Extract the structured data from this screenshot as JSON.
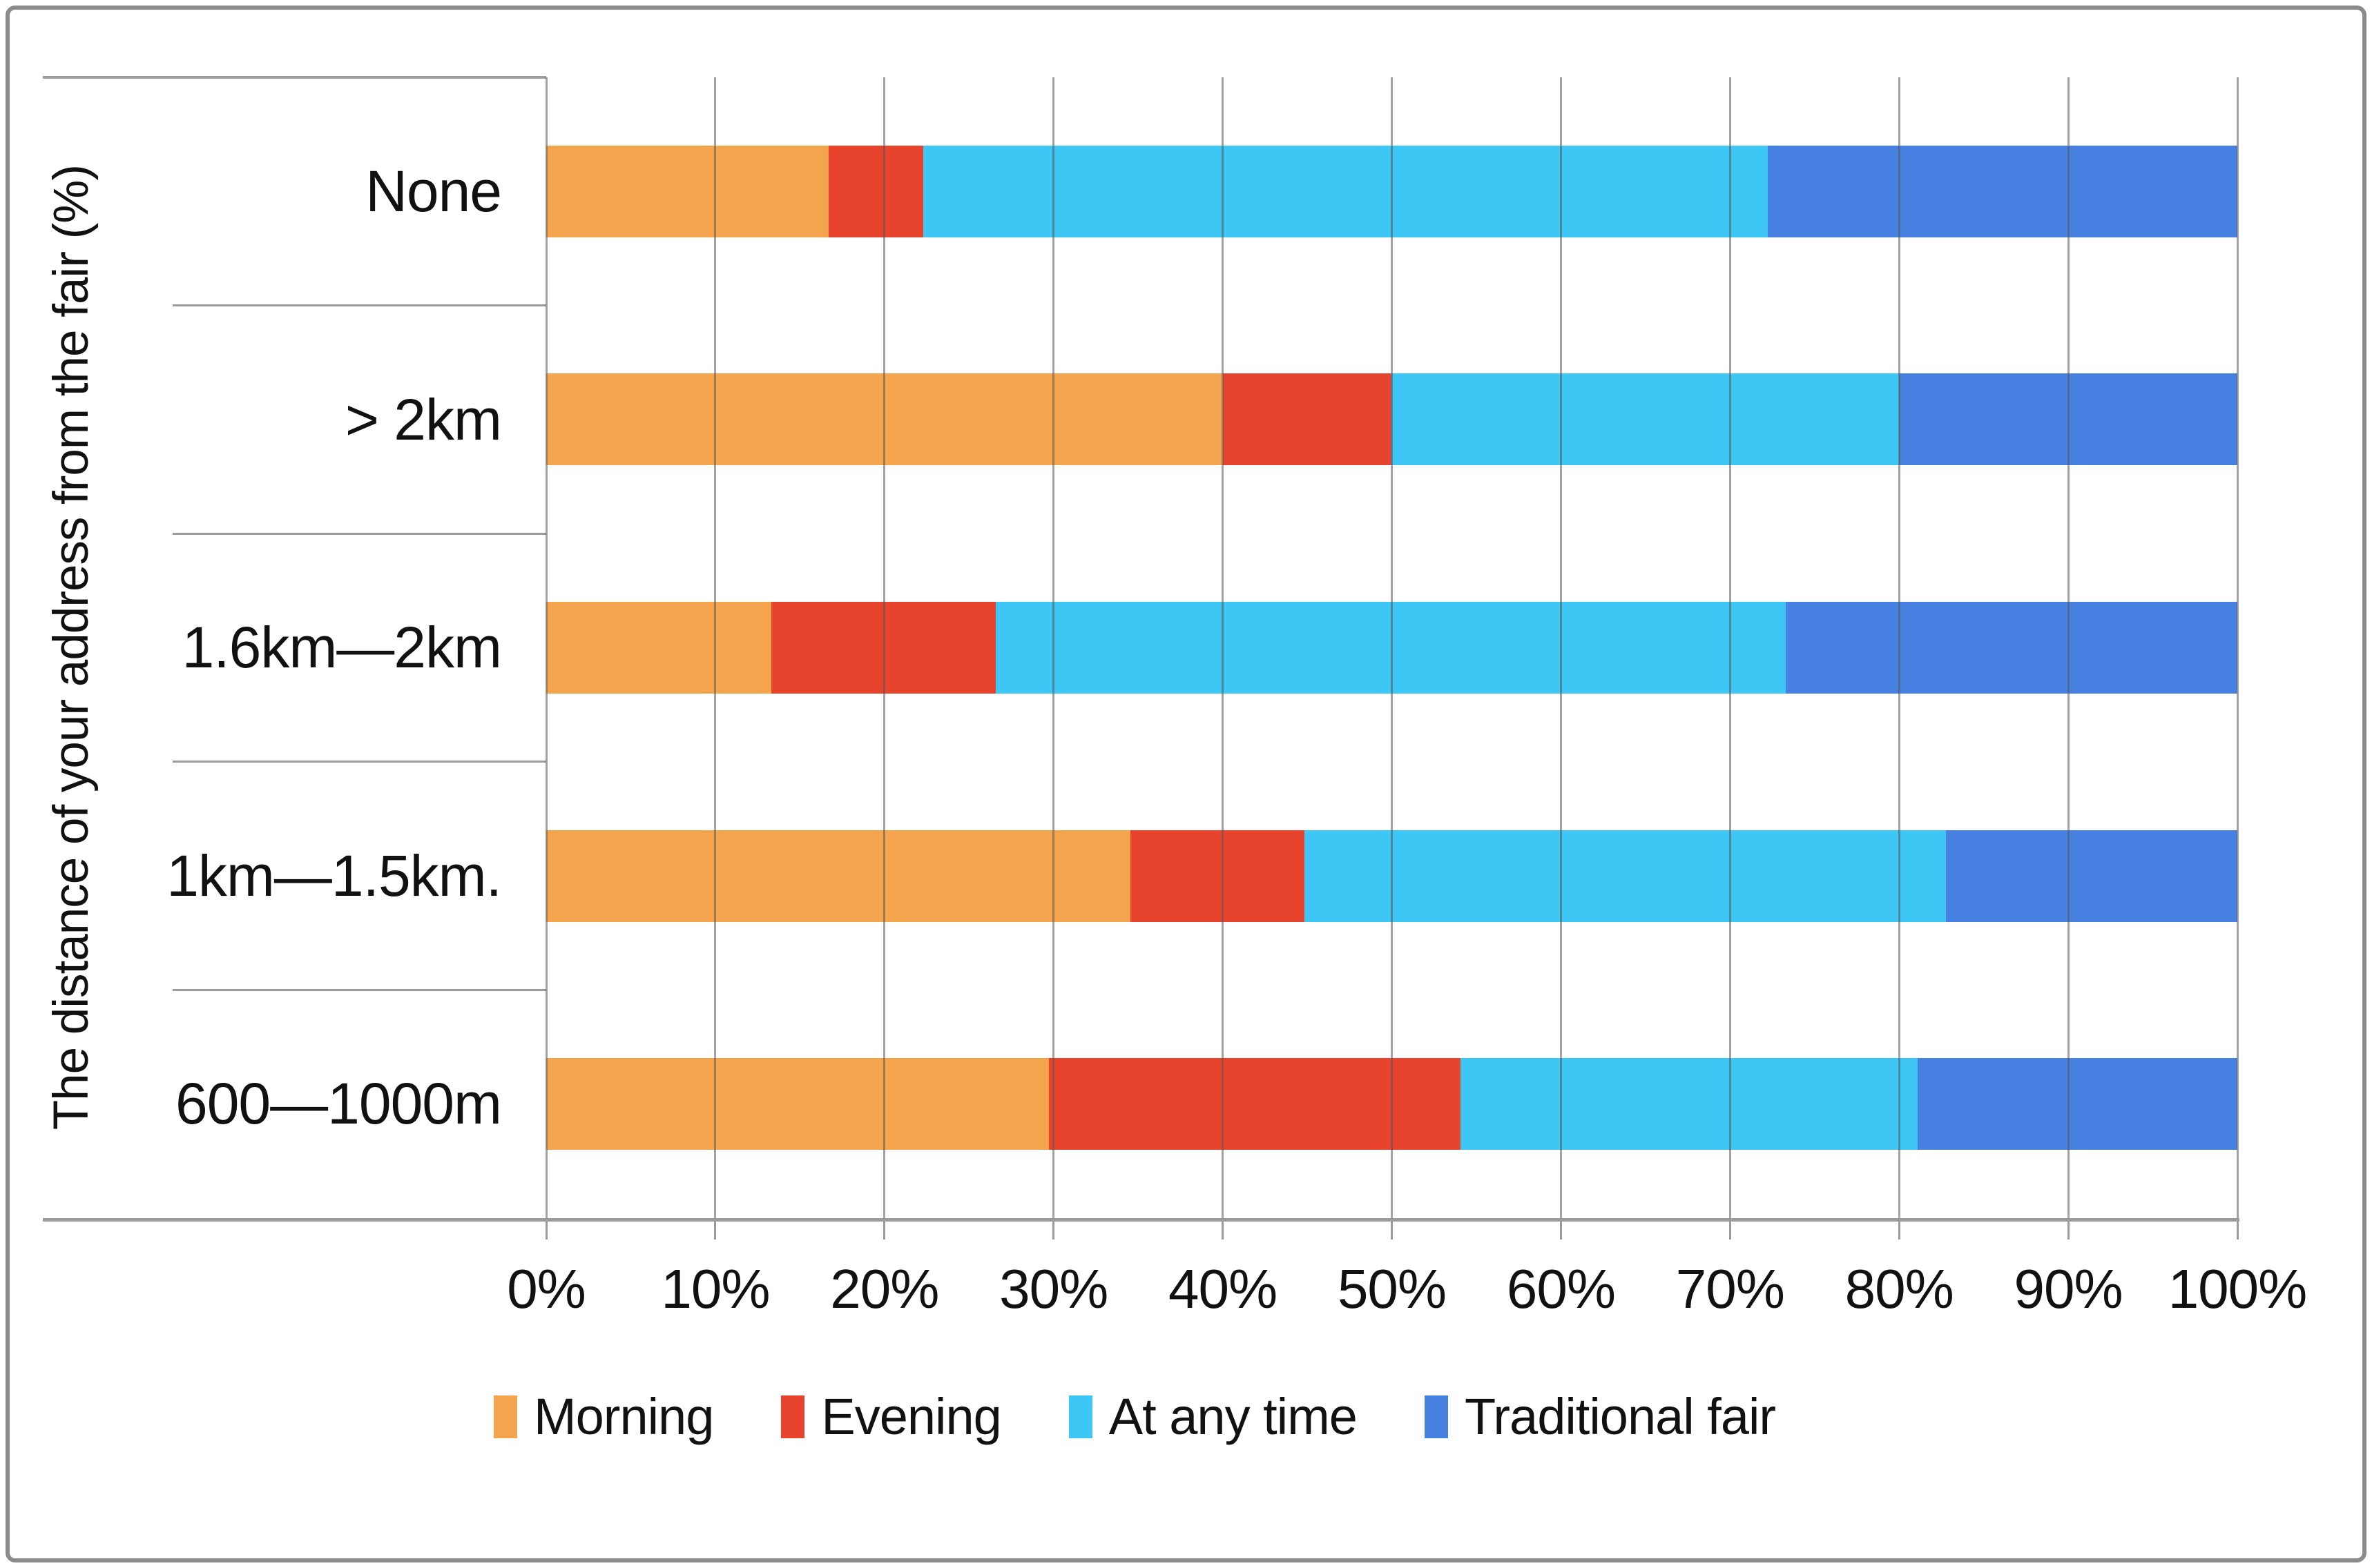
{
  "chart_data": {
    "type": "bar",
    "orientation": "horizontal-stacked",
    "y_axis_title": "The distance of your address from the fair  (%)",
    "categories": [
      "None",
      "> 2km",
      "1.6km—2km",
      "1km—1.5km.",
      "600—1000m"
    ],
    "series": [
      {
        "name": "Morning",
        "color": "#F4A44C",
        "values": [
          16.7,
          40.0,
          13.3,
          34.5,
          29.7
        ]
      },
      {
        "name": "Evening",
        "color": "#E8432C",
        "values": [
          5.6,
          10.0,
          13.3,
          10.3,
          24.3
        ]
      },
      {
        "name": "At any time",
        "color": "#3EC7F4",
        "values": [
          50.0,
          30.0,
          46.7,
          37.9,
          27.0
        ]
      },
      {
        "name": "Traditional fair",
        "color": "#4680E0",
        "values": [
          27.8,
          20.0,
          26.7,
          17.2,
          18.9
        ]
      }
    ],
    "x_ticks": [
      "0%",
      "10%",
      "20%",
      "30%",
      "40%",
      "50%",
      "60%",
      "70%",
      "80%",
      "90%",
      "100%"
    ],
    "xlim": [
      0,
      100
    ],
    "grid": true,
    "legend_position": "bottom"
  }
}
